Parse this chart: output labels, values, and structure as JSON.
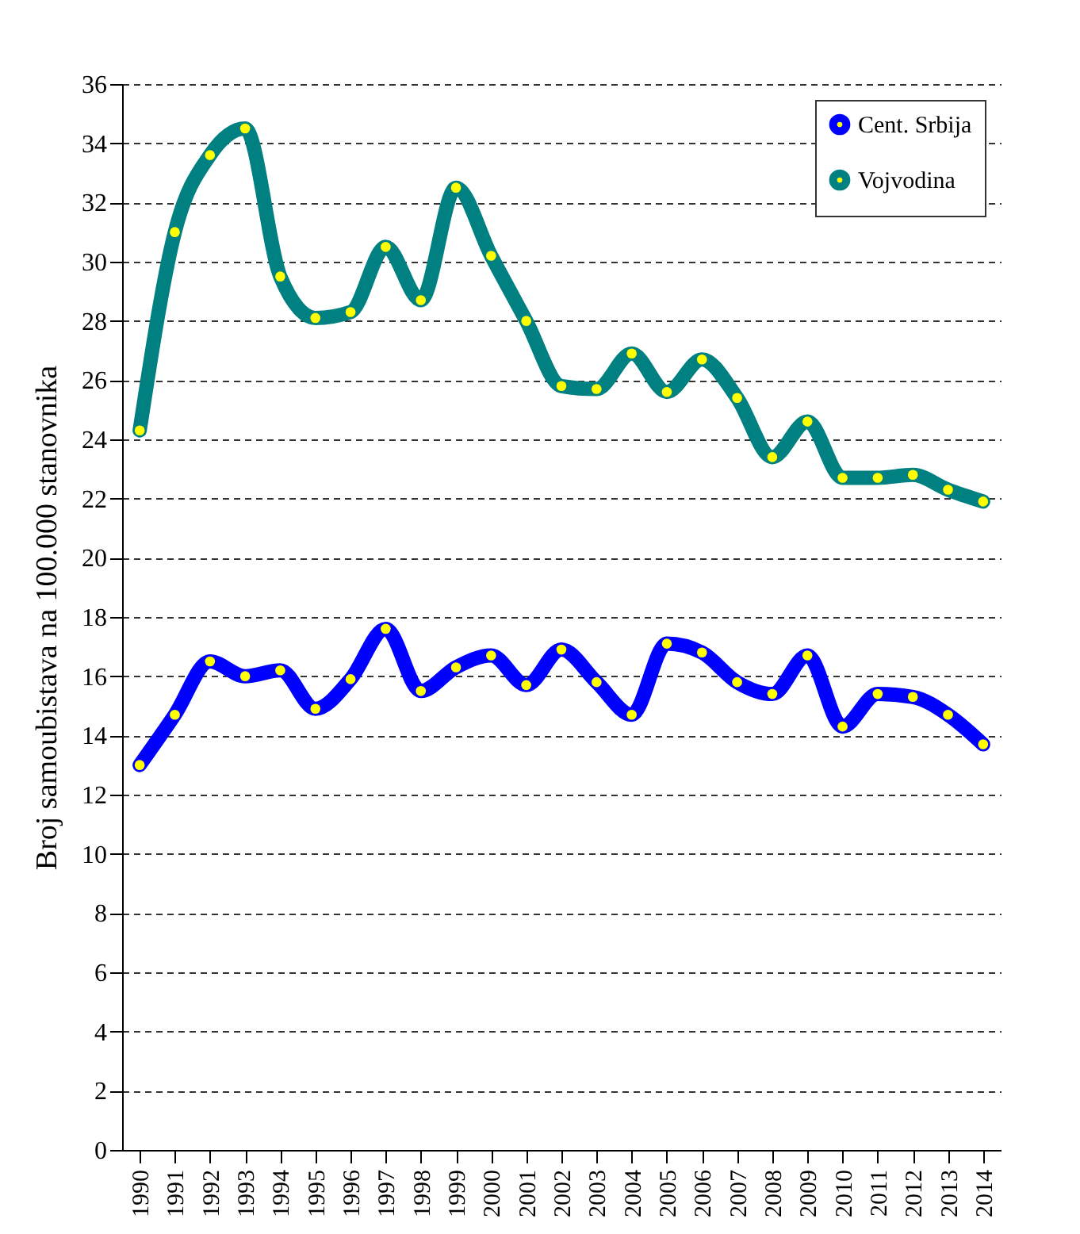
{
  "chart_data": {
    "type": "line",
    "ylabel": "Broj samoubistava na 100.000 stanovnika",
    "categories": [
      "1990",
      "1991",
      "1992",
      "1993",
      "1994",
      "1995",
      "1996",
      "1997",
      "1998",
      "1999",
      "2000",
      "2001",
      "2002",
      "2003",
      "2004",
      "2005",
      "2006",
      "2007",
      "2008",
      "2009",
      "2010",
      "2011",
      "2012",
      "2013",
      "2014"
    ],
    "series": [
      {
        "name": "Cent. Srbija",
        "color": "#0000ff",
        "values": [
          13.0,
          14.7,
          16.5,
          16.0,
          16.2,
          14.9,
          15.9,
          17.6,
          15.5,
          16.3,
          16.7,
          15.7,
          16.9,
          15.8,
          14.7,
          17.1,
          16.8,
          15.8,
          15.4,
          16.7,
          14.3,
          15.4,
          15.3,
          14.7,
          13.7
        ]
      },
      {
        "name": "Vojvodina",
        "color": "#008080",
        "values": [
          24.3,
          31.0,
          33.6,
          34.5,
          29.5,
          28.1,
          28.3,
          30.5,
          28.7,
          32.5,
          30.2,
          28.0,
          25.8,
          25.7,
          26.9,
          25.6,
          26.7,
          25.4,
          23.4,
          24.6,
          22.7,
          22.7,
          22.8,
          22.3,
          21.9
        ]
      }
    ],
    "ylim": [
      0,
      36
    ],
    "yticks": [
      0,
      2,
      4,
      6,
      8,
      10,
      12,
      14,
      16,
      18,
      20,
      22,
      24,
      26,
      28,
      30,
      32,
      34,
      36
    ],
    "grid": "y",
    "legend": "top right",
    "marker": "circle",
    "line_style": "solid"
  }
}
